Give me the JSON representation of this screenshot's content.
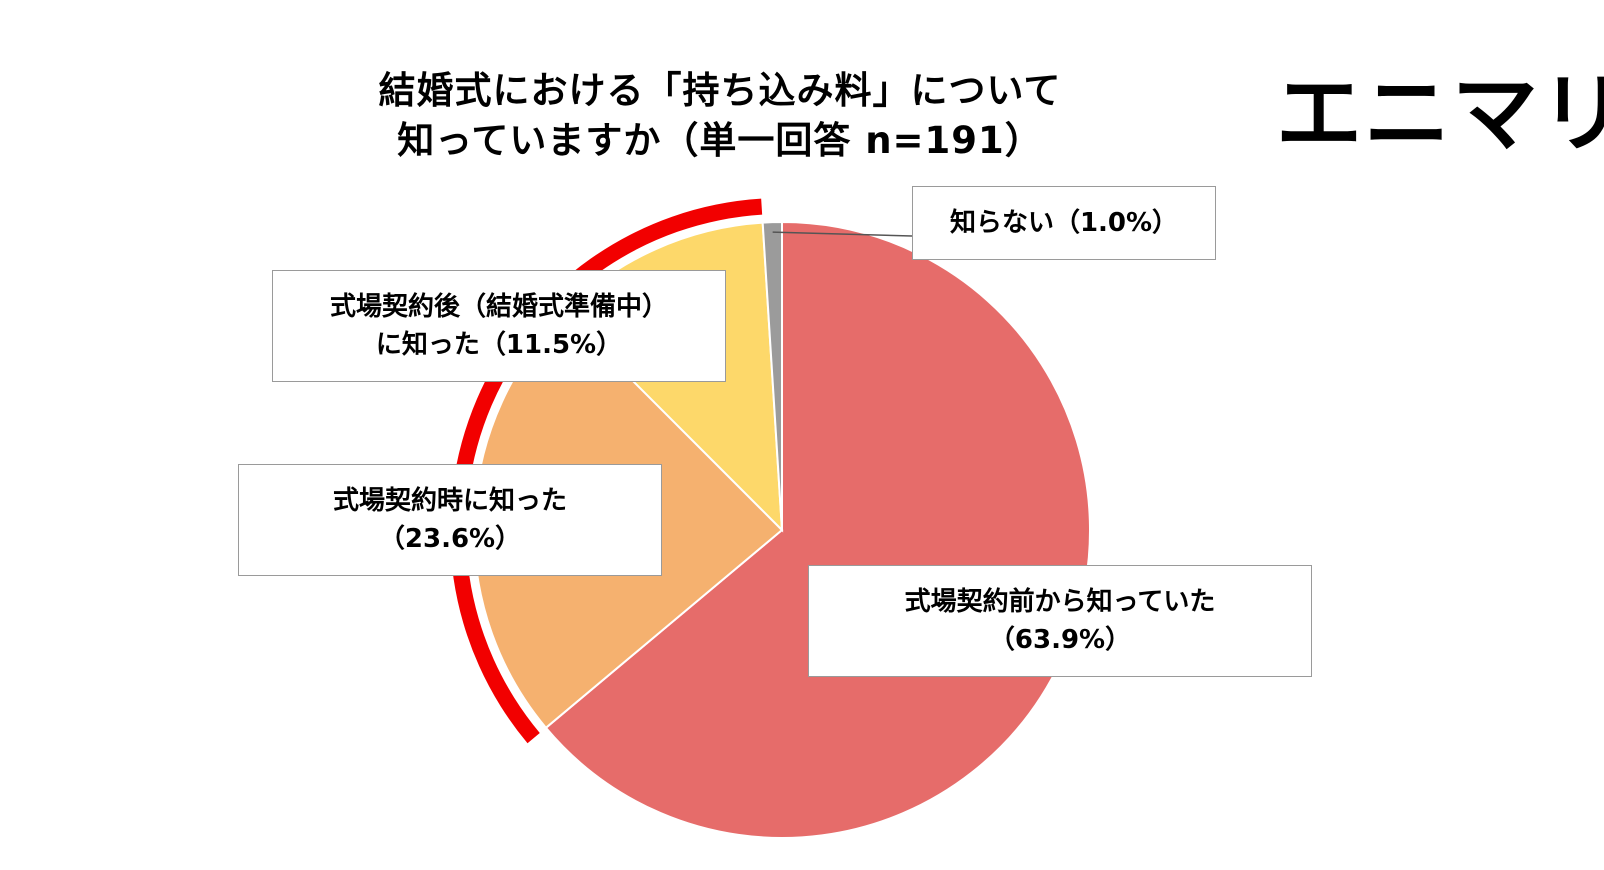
{
  "chart_data": {
    "type": "pie",
    "title_lines": [
      "結婚式における「持ち込み料」について",
      "知っていますか（単一回答 n=191）"
    ],
    "slices": [
      {
        "label_lines": [
          "式場契約前から知っていた",
          "（63.9%）"
        ],
        "value": 63.9,
        "color": "#E66C6A"
      },
      {
        "label_lines": [
          "式場契約時に知った",
          "（23.6%）"
        ],
        "value": 23.6,
        "color": "#F5B16F"
      },
      {
        "label_lines": [
          "式場契約後（結婚式準備中）",
          "に知った（11.5%）"
        ],
        "value": 11.5,
        "color": "#FDD86A"
      },
      {
        "label_lines": [
          "知らない（1.0%）"
        ],
        "value": 1.0,
        "color": "#9B9B9B"
      }
    ],
    "highlight": {
      "color": "#F20000",
      "slices": [
        1,
        2
      ]
    },
    "start_angle_deg": 0,
    "direction": "clockwise",
    "legend": "none"
  },
  "brand": {
    "logo_text": "エニマリ"
  }
}
